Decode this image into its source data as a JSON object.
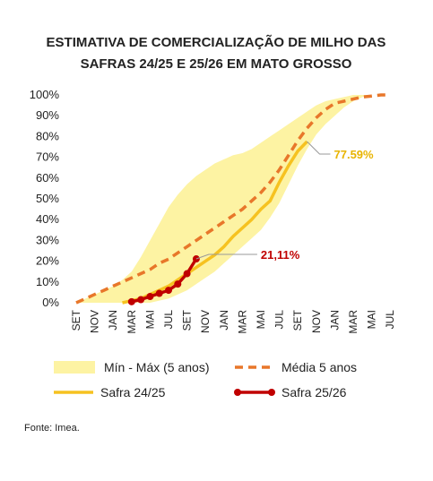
{
  "chart_data": {
    "type": "line",
    "title": [
      "ESTIMATIVA DE COMERCIALIZAÇÃO DE MILHO DAS",
      "SAFRAS 24/25 E 25/26 EM MATO GROSSO"
    ],
    "categories": [
      "SET",
      null,
      "NOV",
      null,
      "JAN",
      null,
      "MAR",
      null,
      "MAI",
      null,
      "JUL",
      null,
      "SET",
      null,
      "NOV",
      null,
      "JAN",
      null,
      "MAR",
      null,
      "MAI",
      null,
      "JUL",
      null,
      "SET",
      null,
      "NOV",
      null,
      "JAN",
      null,
      "MAR",
      null,
      "MAI",
      null,
      "JUL"
    ],
    "ylim": [
      0,
      100
    ],
    "yticks": [
      {
        "value": 0,
        "label": "0%"
      },
      {
        "value": 10,
        "label": "10%"
      },
      {
        "value": 20,
        "label": "20%"
      },
      {
        "value": 30,
        "label": "30%"
      },
      {
        "value": 40,
        "label": "40%"
      },
      {
        "value": 50,
        "label": "50%"
      },
      {
        "value": 60,
        "label": "60%"
      },
      {
        "value": 70,
        "label": "70%"
      },
      {
        "value": 80,
        "label": "80%"
      },
      {
        "value": 90,
        "label": "90%"
      },
      {
        "value": 100,
        "label": "100%"
      }
    ],
    "grid": false,
    "series": [
      {
        "name": "Mín - Máx (5 anos)",
        "type": "band",
        "color": "#fdf3a3",
        "lower": [
          0,
          0,
          0,
          0,
          0,
          0,
          0,
          0,
          0,
          1,
          2,
          4,
          6,
          9,
          12,
          15,
          19,
          23,
          27,
          31,
          35,
          41,
          48,
          57,
          66,
          74,
          81,
          86,
          90,
          94,
          97,
          99,
          100,
          100,
          100
        ],
        "upper": [
          0,
          2,
          4,
          6,
          8,
          11,
          15,
          22,
          30,
          38,
          46,
          52,
          57,
          61,
          64,
          67,
          69,
          71,
          72,
          74,
          77,
          80,
          83,
          86,
          89,
          92,
          95,
          97,
          98,
          99,
          100,
          100,
          100,
          100,
          100
        ]
      },
      {
        "name": "Média 5 anos",
        "type": "dashed",
        "color": "#e8772a",
        "values": [
          0,
          2,
          4,
          6,
          8,
          10,
          12,
          14,
          16,
          19,
          21,
          24,
          27,
          30,
          33,
          36,
          39,
          42,
          45,
          49,
          53,
          58,
          64,
          71,
          78,
          84,
          89,
          93,
          96,
          97,
          98,
          99,
          99.5,
          100,
          100
        ]
      },
      {
        "name": "Safra 24/25",
        "type": "line",
        "color": "#f6c220",
        "values": [
          null,
          null,
          null,
          null,
          null,
          0,
          1,
          2,
          4,
          6,
          8,
          11,
          14,
          17,
          20,
          23,
          27,
          32,
          36,
          40,
          45,
          49,
          58,
          66,
          73,
          77.59,
          null,
          null,
          null,
          null,
          null,
          null,
          null,
          null,
          null
        ]
      },
      {
        "name": "Safra 25/26",
        "type": "dots",
        "color": "#c00000",
        "values": [
          null,
          null,
          null,
          null,
          null,
          null,
          0.5,
          1.5,
          3,
          4.5,
          6,
          9,
          14,
          21.11,
          null,
          null,
          null,
          null,
          null,
          null,
          null,
          null,
          null,
          null,
          null,
          null,
          null,
          null,
          null,
          null,
          null,
          null,
          null,
          null,
          null
        ]
      }
    ],
    "annotations": [
      {
        "text": "77.59%",
        "color": "#e8b400"
      },
      {
        "text": "21,11%",
        "color": "#c00000"
      }
    ],
    "source": "Fonte: Imea."
  }
}
